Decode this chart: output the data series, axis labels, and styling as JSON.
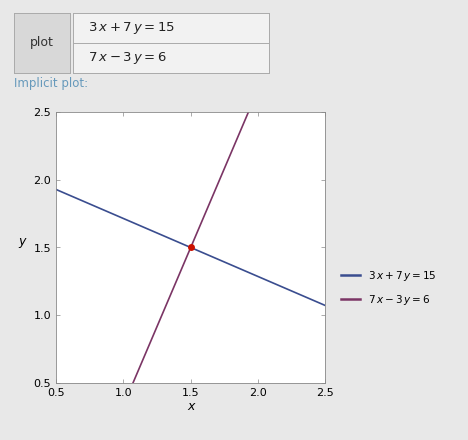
{
  "title_text": "Implicit plot:",
  "xlabel": "x",
  "ylabel": "y",
  "xlim": [
    0.5,
    2.5
  ],
  "ylim": [
    0.5,
    2.5
  ],
  "xticks": [
    0.5,
    1.0,
    1.5,
    2.0,
    2.5
  ],
  "yticks": [
    0.5,
    1.0,
    1.5,
    2.0,
    2.5
  ],
  "line1_color": "#3a4d8f",
  "line1_lw": 1.2,
  "line1_label": "3 x+7 y = 15",
  "line2_color": "#7b3565",
  "line2_lw": 1.2,
  "line2_label": "7 x−3 y = 6",
  "intersection": [
    1.5,
    1.5
  ],
  "dot_color": "#cc1100",
  "dot_size": 5,
  "fig_bg": "#e8e8e8",
  "plot_bg": "#ffffff",
  "header_bg": "#f2f2f2",
  "btn_bg": "#d8d8d8",
  "implicit_color": "#6699bb",
  "figsize": [
    4.68,
    4.4
  ],
  "dpi": 100
}
